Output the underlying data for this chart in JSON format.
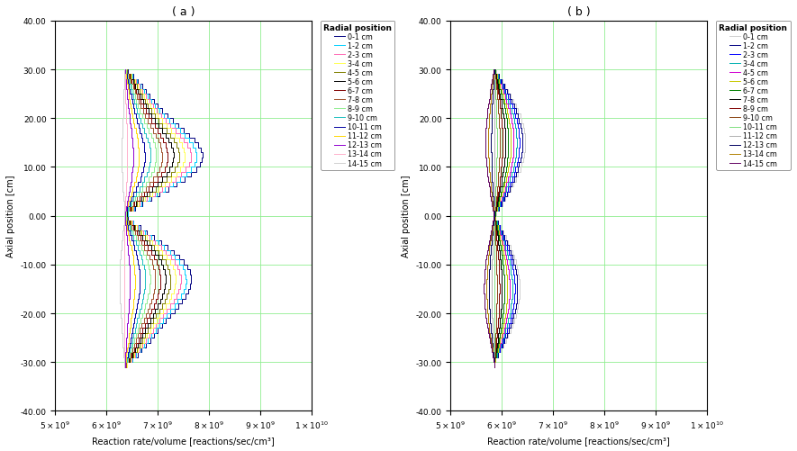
{
  "title_a": "( a )",
  "title_b": "( b )",
  "xlabel": "Reaction rate/volume [reactions/sec/cm³]",
  "ylabel": "Axial position [cm]",
  "legend_title": "Radial position",
  "legend_labels": [
    "0-1 cm",
    "1-2 cm",
    "2-3 cm",
    "3-4 cm",
    "4-5 cm",
    "5-6 cm",
    "6-7 cm",
    "7-8 cm",
    "8-9 cm",
    "9-10 cm",
    "10-11 cm",
    "11-12 cm",
    "12-13 cm",
    "13-14 cm",
    "14-15 cm"
  ],
  "line_colors_a": [
    "#000080",
    "#00CFFF",
    "#FF69B4",
    "#FFFF50",
    "#808000",
    "#000000",
    "#800000",
    "#A0522D",
    "#90EE90",
    "#20C0C0",
    "#0000A0",
    "#FFD700",
    "#9000D0",
    "#FFB0CC",
    "#D0D0D0"
  ],
  "line_colors_b": [
    "#D0D0D0",
    "#000080",
    "#0000FF",
    "#00B0B0",
    "#D000D0",
    "#C8C800",
    "#008000",
    "#000000",
    "#800000",
    "#8B4513",
    "#80E080",
    "#B0B0B0",
    "#000060",
    "#B08000",
    "#600060"
  ],
  "ylim": [
    -40,
    40
  ],
  "xlim_a": [
    5000000000.0,
    10000000000.0
  ],
  "xlim_b": [
    5000000000.0,
    10000000000.0
  ],
  "yticks": [
    -40,
    -30,
    -20,
    -10,
    0,
    10,
    20,
    30,
    40
  ],
  "xticks": [
    5000000000.0,
    6000000000.0,
    7000000000.0,
    8000000000.0,
    9000000000.0,
    10000000000.0
  ],
  "background_color": "#ffffff",
  "grid_color": "#90EE90",
  "n_radial": 15
}
